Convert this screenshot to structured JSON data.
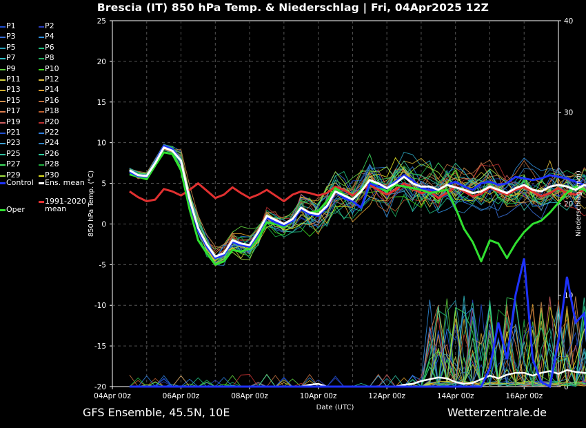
{
  "title": "Brescia  (IT)  850 hPa Temp. & Niederschlag | Fri, 04Apr2025 12Z",
  "footer": {
    "left": "GFS Ensemble, 45.5N, 10E",
    "right": "Wetterzentrale.de"
  },
  "legend": [
    {
      "label": "P1",
      "color": "#1f4fd0"
    },
    {
      "label": "P2",
      "color": "#2a3fc0"
    },
    {
      "label": "P3",
      "color": "#3a6fd8"
    },
    {
      "label": "P4",
      "color": "#2f8fe0"
    },
    {
      "label": "P5",
      "color": "#2aa0b8"
    },
    {
      "label": "P6",
      "color": "#20c080"
    },
    {
      "label": "P7",
      "color": "#30c0c8"
    },
    {
      "label": "P8",
      "color": "#20b060"
    },
    {
      "label": "P9",
      "color": "#60d040"
    },
    {
      "label": "P10",
      "color": "#40e020"
    },
    {
      "label": "P11",
      "color": "#d0d040"
    },
    {
      "label": "P12",
      "color": "#e0c040"
    },
    {
      "label": "P13",
      "color": "#d0b030"
    },
    {
      "label": "P14",
      "color": "#e0a030"
    },
    {
      "label": "P15",
      "color": "#d09050"
    },
    {
      "label": "P16",
      "color": "#c07040"
    },
    {
      "label": "P17",
      "color": "#e08050"
    },
    {
      "label": "P18",
      "color": "#c06030"
    },
    {
      "label": "P19",
      "color": "#d06060"
    },
    {
      "label": "P20",
      "color": "#c03030"
    },
    {
      "label": "P21",
      "color": "#2050d0"
    },
    {
      "label": "P22",
      "color": "#2f80e0"
    },
    {
      "label": "P23",
      "color": "#40a0d0"
    },
    {
      "label": "P24",
      "color": "#3080c0"
    },
    {
      "label": "P25",
      "color": "#30c0a0"
    },
    {
      "label": "P26",
      "color": "#30d0a0"
    },
    {
      "label": "P27",
      "color": "#40e060"
    },
    {
      "label": "P28",
      "color": "#20b040"
    },
    {
      "label": "P29",
      "color": "#a0e040"
    },
    {
      "label": "P30",
      "color": "#e0e020"
    },
    {
      "label": "Control",
      "color": "#1e32ff",
      "bold": true
    },
    {
      "label": "Ens. mean",
      "color": "#ffffff",
      "bold": true
    },
    {
      "label": "1991-2020\nmean",
      "color": "#e03030",
      "bold": true
    },
    {
      "label": "Oper",
      "color": "#30e030",
      "bold": true
    }
  ],
  "chart_data": {
    "type": "line",
    "title": "Brescia  (IT)  850 hPa Temp. & Niederschlag | Fri, 04Apr2025 12Z",
    "xlabel": "Date (UTC)",
    "ylabel": "850 hPa Temp. (°C)",
    "y2label": "Niederschlag (mm)",
    "x_ticks": [
      "04Apr 00z",
      "06Apr 00z",
      "08Apr 00z",
      "10Apr 00z",
      "12Apr 00z",
      "14Apr 00z",
      "16Apr 00z"
    ],
    "x_range_days": [
      0,
      13
    ],
    "x_start_offset_days": 0.5,
    "step_hours": 6,
    "ylim": [
      -20,
      25
    ],
    "y_ticks": [
      25,
      20,
      15,
      10,
      5,
      0,
      -5,
      -10,
      -15,
      -20
    ],
    "y2lim": [
      0,
      40
    ],
    "y2_ticks": [
      40,
      30,
      20,
      10,
      0
    ],
    "grid": true,
    "series": [
      {
        "name": "Ens. mean",
        "color": "#ffffff",
        "values": [
          6.6,
          6.0,
          5.9,
          7.5,
          9.4,
          9.0,
          7.8,
          3.0,
          -0.5,
          -2.5,
          -4.0,
          -3.6,
          -2.0,
          -2.4,
          -2.6,
          -1.0,
          1.0,
          0.5,
          0.0,
          0.6,
          2.0,
          1.4,
          1.2,
          2.2,
          4.0,
          3.5,
          3.0,
          4.0,
          5.4,
          5.0,
          4.4,
          5.0,
          5.8,
          5.0,
          4.6,
          4.6,
          4.2,
          4.8,
          4.5,
          4.2,
          3.8,
          4.0,
          4.6,
          4.2,
          3.8,
          4.4,
          4.8,
          4.2,
          4.0,
          4.6,
          4.8,
          4.6,
          4.2,
          4.8,
          4.4
        ]
      },
      {
        "name": "Control",
        "color": "#1e32ff",
        "values": [
          6.4,
          5.9,
          5.8,
          7.6,
          9.6,
          9.2,
          7.8,
          2.8,
          -0.8,
          -2.8,
          -4.2,
          -3.8,
          -2.2,
          -2.6,
          -2.8,
          -1.2,
          0.8,
          0.2,
          -0.2,
          0.4,
          1.8,
          1.2,
          1.0,
          2.0,
          4.0,
          3.2,
          2.8,
          2.0,
          5.0,
          4.6,
          4.4,
          5.2,
          6.0,
          5.4,
          4.4,
          4.2,
          4.2,
          4.8,
          5.2,
          4.6,
          4.2,
          5.0,
          5.2,
          4.8,
          5.0,
          5.8,
          5.6,
          5.4,
          5.6,
          6.0,
          5.8,
          5.6,
          5.2,
          4.8,
          4.0
        ]
      },
      {
        "name": "Oper",
        "color": "#30e030",
        "values": [
          6.1,
          5.8,
          5.5,
          7.2,
          8.8,
          8.6,
          6.6,
          1.8,
          -2.0,
          -3.6,
          -5.0,
          -4.6,
          -3.2,
          -3.4,
          -3.0,
          -1.8,
          0.2,
          0.0,
          -0.4,
          0.6,
          1.8,
          1.4,
          1.6,
          2.8,
          4.4,
          3.6,
          3.0,
          4.2,
          5.4,
          4.6,
          4.0,
          4.8,
          4.6,
          4.4,
          4.2,
          3.8,
          4.0,
          4.2,
          2.0,
          -0.6,
          -2.2,
          -4.6,
          -2.0,
          -2.4,
          -4.2,
          -2.4,
          -1.0,
          0.0,
          0.4,
          1.4,
          2.6,
          3.8,
          4.6,
          4.2,
          3.4
        ]
      },
      {
        "name": "1991-2020 mean",
        "color": "#e03030",
        "values": [
          4.0,
          3.3,
          2.8,
          3.0,
          4.3,
          4.0,
          3.5,
          4.2,
          5.0,
          4.1,
          3.2,
          3.6,
          4.5,
          3.8,
          3.2,
          3.6,
          4.2,
          3.5,
          2.8,
          3.6,
          4.0,
          3.8,
          3.5,
          3.8,
          4.6,
          4.2,
          3.5,
          4.2,
          4.8,
          4.2,
          3.6,
          4.2,
          5.0,
          4.4,
          3.8,
          4.0,
          3.2,
          3.8,
          4.6,
          4.0,
          3.4,
          3.7,
          4.5,
          4.0,
          3.6,
          4.2,
          4.6,
          4.0,
          3.4,
          3.8,
          4.4,
          3.8,
          3.6,
          4.2,
          3.4
        ]
      }
    ],
    "precip_series": [
      {
        "name": "Ens. mean",
        "color": "#ffffff",
        "values": [
          0,
          0,
          0,
          0,
          0,
          0,
          0,
          0,
          0,
          0,
          0,
          0,
          0,
          0,
          0,
          0,
          0,
          0,
          0,
          0,
          0,
          0.2,
          0.3,
          0,
          0,
          0,
          0,
          0,
          0,
          0,
          0,
          0,
          0.2,
          0.3,
          0.6,
          0.8,
          1.0,
          0.9,
          0.5,
          0.3,
          0.4,
          0.8,
          1.2,
          0.9,
          1.3,
          1.5,
          1.5,
          1.2,
          1.5,
          1.7,
          1.4,
          1.8,
          1.6,
          1.5,
          1.4
        ]
      },
      {
        "name": "Control",
        "color": "#1e32ff",
        "values": [
          0,
          0,
          0,
          0,
          0,
          0,
          0,
          0,
          0,
          0,
          0,
          0,
          0,
          0,
          0,
          0,
          0,
          0,
          0,
          0,
          0,
          0,
          0,
          0,
          0,
          0,
          0,
          0,
          0,
          0,
          0,
          0,
          0,
          0,
          0,
          0,
          0,
          0,
          0,
          0,
          0,
          0,
          2,
          7,
          3,
          10,
          14,
          3,
          0.5,
          0,
          5,
          12,
          7,
          8,
          0
        ]
      }
    ]
  }
}
